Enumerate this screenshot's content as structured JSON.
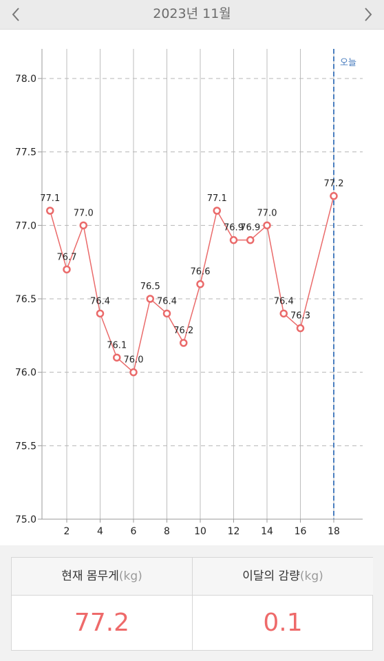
{
  "header": {
    "title": "2023년 11월",
    "prev_icon": "chevron-left-icon",
    "next_icon": "chevron-right-icon"
  },
  "chart_data": {
    "type": "line",
    "x_ticks": [
      "2",
      "4",
      "6",
      "8",
      "10",
      "12",
      "14",
      "16",
      "18"
    ],
    "y_ticks": [
      "75.0",
      "75.5",
      "76.0",
      "76.5",
      "77.0",
      "77.5",
      "78.0"
    ],
    "xlim": [
      0,
      19
    ],
    "ylim": [
      75.0,
      78.0
    ],
    "today_x": 18,
    "today_label": "오늘",
    "series": [
      {
        "color": "#ea6a6a",
        "x": [
          1,
          2,
          3,
          4,
          5,
          6,
          7,
          8,
          9,
          10,
          11,
          12,
          13,
          14,
          15,
          16,
          18
        ],
        "y": [
          77.1,
          76.7,
          77.0,
          76.4,
          76.1,
          76.0,
          76.5,
          76.4,
          76.2,
          76.6,
          77.1,
          76.9,
          76.9,
          77.0,
          76.4,
          76.3,
          77.2
        ],
        "labels": [
          "77.1",
          "76.7",
          "77.0",
          "76.4",
          "76.1",
          "76.0",
          "76.5",
          "76.4",
          "76.2",
          "76.6",
          "77.1",
          "76.9",
          "76.9",
          "77.0",
          "76.4",
          "76.3",
          "77.2"
        ]
      }
    ]
  },
  "stats": {
    "current": {
      "label": "현재 몸무게",
      "unit": "(kg)",
      "value": "77.2"
    },
    "change": {
      "label": "이달의 감량",
      "unit": "(kg)",
      "value": "0.1"
    }
  }
}
